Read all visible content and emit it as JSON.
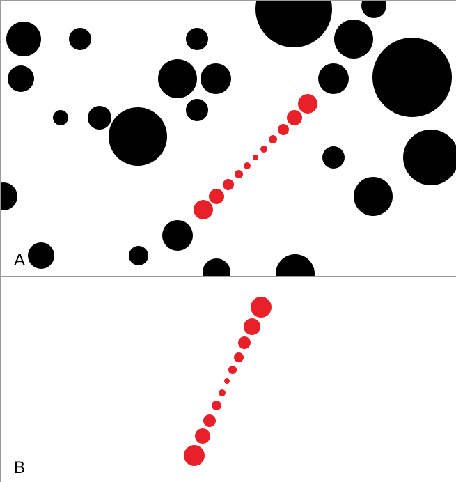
{
  "figure": {
    "panels": [
      {
        "label": "A"
      },
      {
        "label": "B"
      }
    ]
  },
  "colors": {
    "distractor": "#000000",
    "target": "#e8202a",
    "background": "#ffffff",
    "border": "#9a9a9a"
  }
}
